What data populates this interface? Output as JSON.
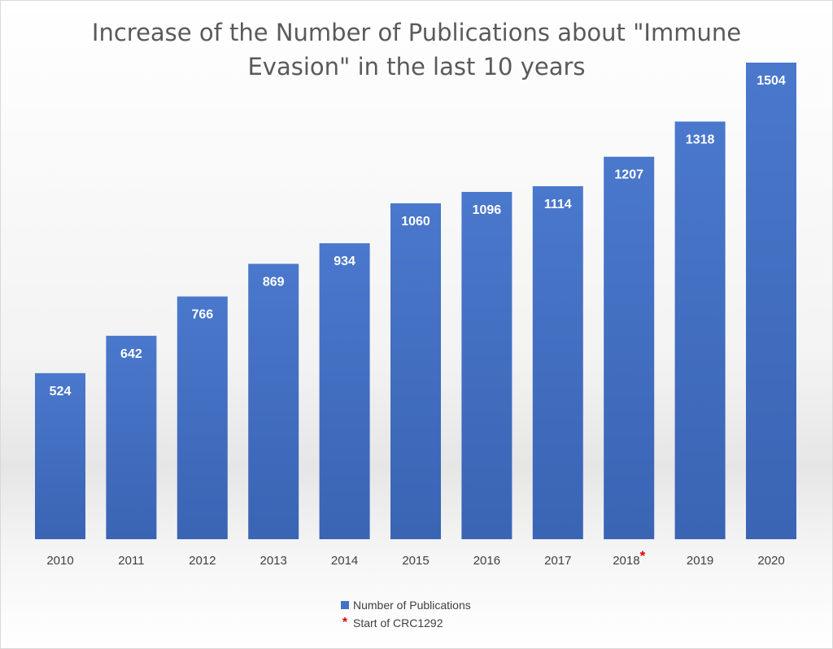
{
  "chart_data": {
    "type": "bar",
    "title": "Increase of the Number of Publications about \"Immune Evasion\" in the last 10 years",
    "title_lines": [
      "Increase of the Number of Publications about \"Immune",
      "Evasion\" in the last 10 years"
    ],
    "categories": [
      "2010",
      "2011",
      "2012",
      "2013",
      "2014",
      "2015",
      "2016",
      "2017",
      "2018",
      "2019",
      "2020"
    ],
    "series": [
      {
        "name": "Number of Publications",
        "values": [
          524,
          642,
          766,
          869,
          934,
          1060,
          1096,
          1114,
          1207,
          1318,
          1504
        ],
        "color": "#4472c4"
      }
    ],
    "annotations": [
      {
        "category": "2018",
        "marker": "*",
        "marker_color": "#e00000",
        "text": "Start of CRC1292"
      }
    ],
    "ylim": [
      0,
      1504
    ],
    "grid": false,
    "data_labels": true,
    "legend_position": "bottom"
  },
  "legend": {
    "series_label": "Number of Publications",
    "note_marker": "*",
    "note_label": "Start of CRC1292"
  }
}
